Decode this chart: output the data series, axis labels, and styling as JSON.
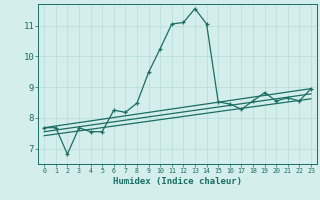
{
  "title": "",
  "xlabel": "Humidex (Indice chaleur)",
  "ylabel": "",
  "background_color": "#d4eeeb",
  "grid_color": "#b8ddd8",
  "line_color": "#1a6e64",
  "xlim": [
    -0.5,
    23.5
  ],
  "ylim": [
    6.5,
    11.7
  ],
  "yticks": [
    7,
    8,
    9,
    10,
    11
  ],
  "xticks": [
    0,
    1,
    2,
    3,
    4,
    5,
    6,
    7,
    8,
    9,
    10,
    11,
    12,
    13,
    14,
    15,
    16,
    17,
    18,
    19,
    20,
    21,
    22,
    23
  ],
  "series": [
    {
      "x": [
        0,
        1,
        2,
        3,
        4,
        5,
        6,
        7,
        8,
        9,
        10,
        11,
        12,
        13,
        14,
        15,
        16,
        17,
        18,
        19,
        20,
        21,
        22,
        23
      ],
      "y": [
        7.68,
        7.68,
        6.82,
        7.68,
        7.55,
        7.55,
        8.25,
        8.18,
        8.48,
        9.48,
        10.25,
        11.05,
        11.1,
        11.55,
        11.05,
        8.52,
        8.45,
        8.28,
        8.55,
        8.82,
        8.55,
        8.65,
        8.55,
        8.95
      ],
      "marker": "+"
    },
    {
      "x": [
        0,
        23
      ],
      "y": [
        7.68,
        8.95
      ],
      "marker": null
    },
    {
      "x": [
        0,
        23
      ],
      "y": [
        7.55,
        8.78
      ],
      "marker": null
    },
    {
      "x": [
        0,
        23
      ],
      "y": [
        7.42,
        8.62
      ],
      "marker": null
    }
  ]
}
